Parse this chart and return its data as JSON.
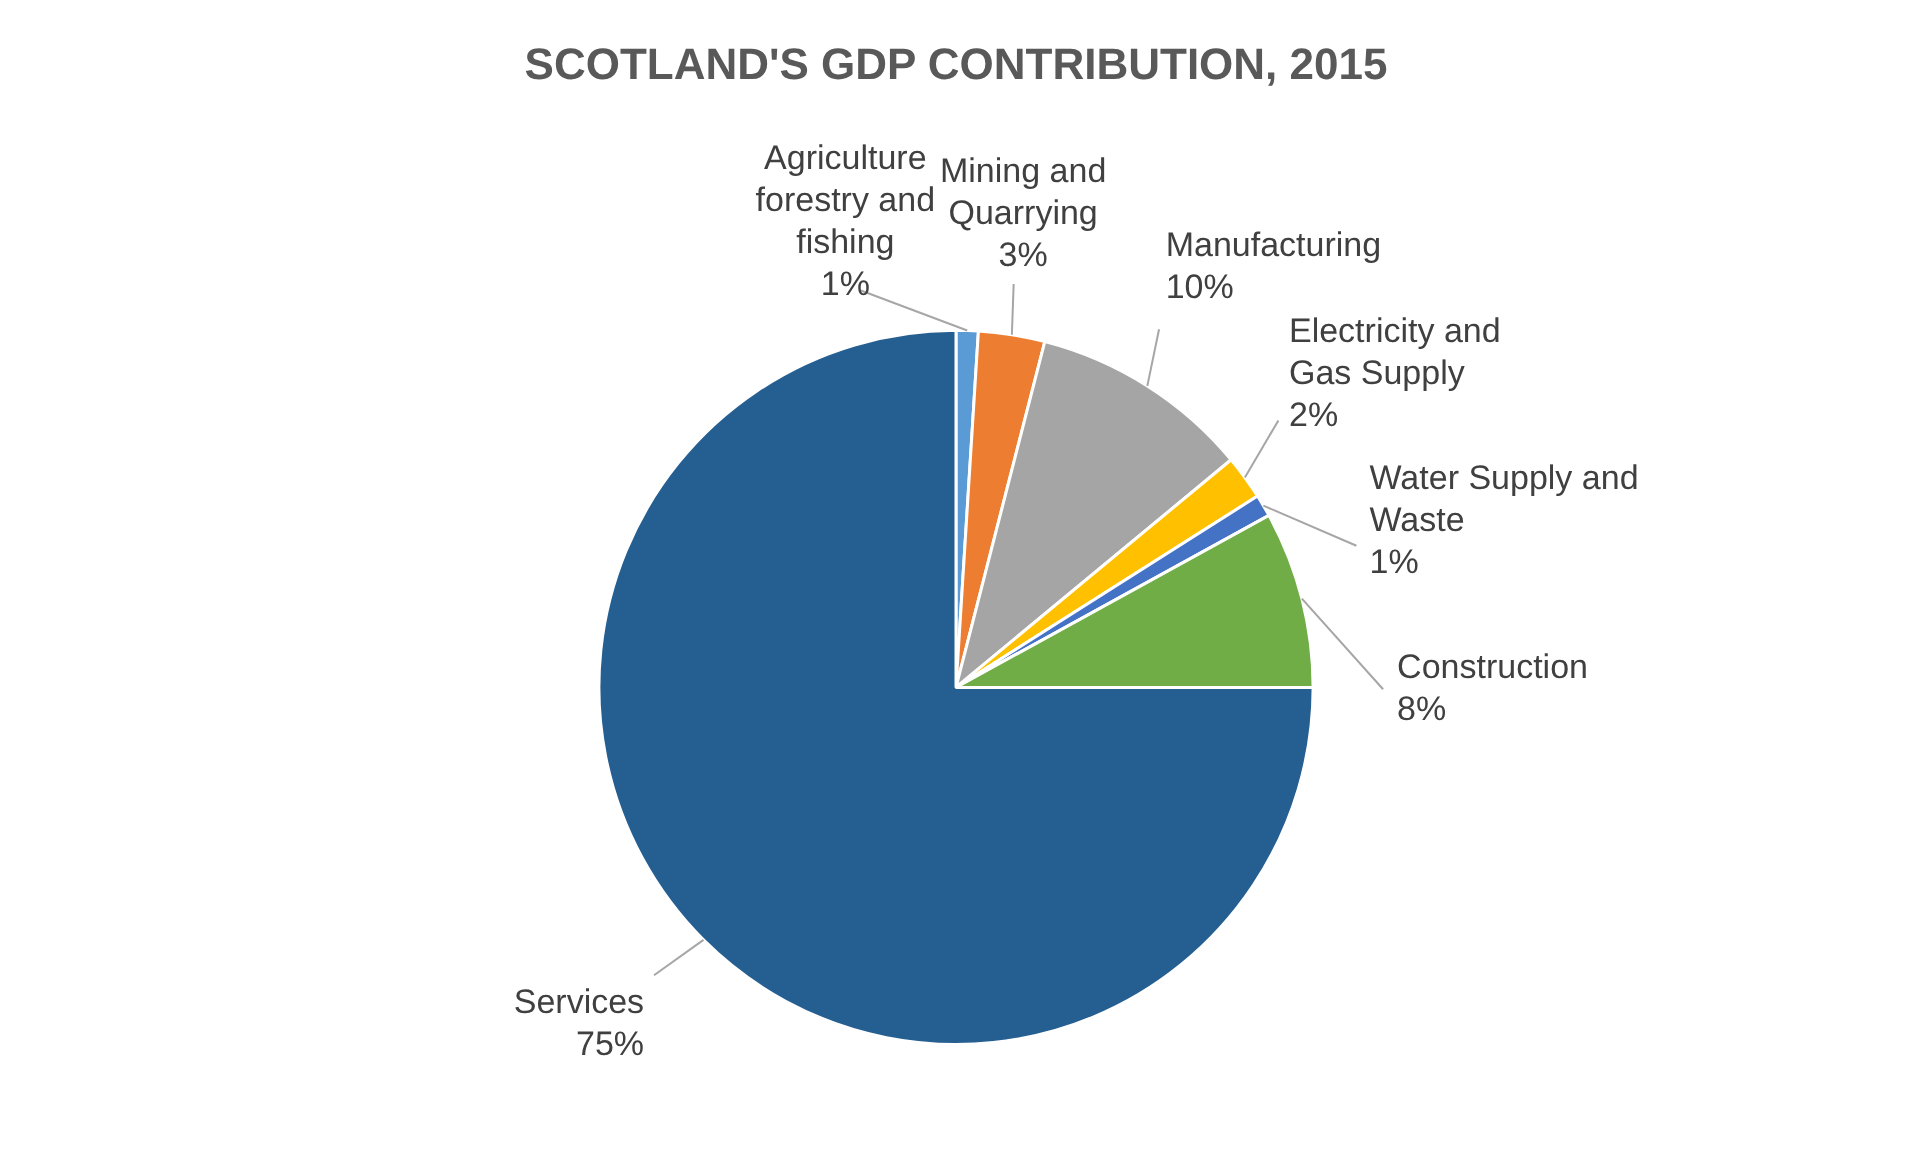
{
  "chart_data": {
    "type": "pie",
    "title": "SCOTLAND'S GDP CONTRIBUTION, 2015",
    "categories": [
      "Agriculture forestry and fishing",
      "Mining and Quarrying",
      "Manufacturing",
      "Electricity and Gas Supply",
      "Water Supply and Waste",
      "Construction",
      "Services"
    ],
    "values": [
      1,
      3,
      10,
      2,
      1,
      8,
      75
    ],
    "value_labels": [
      "1%",
      "3%",
      "10%",
      "2%",
      "1%",
      "8%",
      "75%"
    ],
    "colors": [
      "#5b9bd5",
      "#ed7d31",
      "#a5a5a5",
      "#ffc000",
      "#4472c4",
      "#70ad47",
      "#255e91"
    ],
    "legend": false
  }
}
